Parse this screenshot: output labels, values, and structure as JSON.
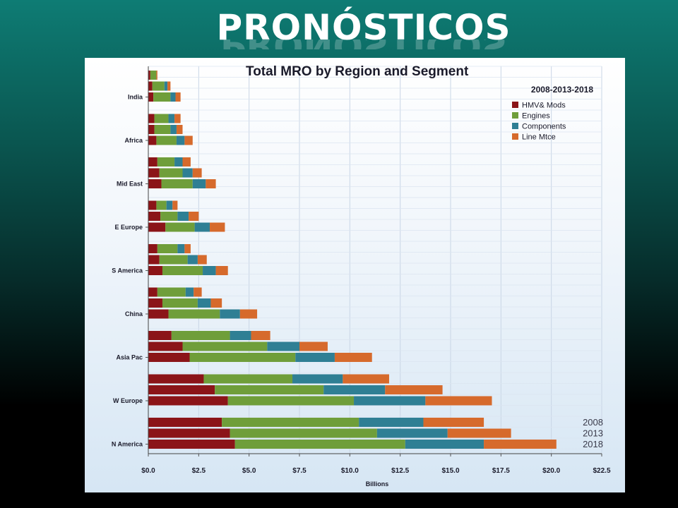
{
  "slide": {
    "title": "PRONÓSTICOS"
  },
  "chart_data": {
    "type": "bar",
    "orientation": "horizontal",
    "stacked": true,
    "title": "Total MRO by Region and Segment",
    "subtitle": "2008-2013-2018",
    "xlabel": "Billions",
    "ylabel": "",
    "xlim": [
      0,
      22.5
    ],
    "x_ticks": [
      "$0.0",
      "$2.5",
      "$5.0",
      "$7.5",
      "$10.0",
      "$12.5",
      "$15.0",
      "$17.5",
      "$20.0",
      "$22.5"
    ],
    "grid": true,
    "legend_position": "top-right",
    "years": [
      "2008",
      "2013",
      "2018"
    ],
    "segments": [
      {
        "name": "HMV& Mods",
        "color": "#8b1418"
      },
      {
        "name": "Engines",
        "color": "#6f9e3a"
      },
      {
        "name": "Components",
        "color": "#2f7f94"
      },
      {
        "name": "Line Mtce",
        "color": "#d66a2c"
      }
    ],
    "categories": [
      "India",
      "Africa",
      "Mid East",
      "E Europe",
      "S America",
      "China",
      "Asia Pac",
      "W Europe",
      "N America"
    ],
    "data": [
      {
        "category": "India",
        "values": [
          [
            0.1,
            0.3,
            0.0,
            0.05
          ],
          [
            0.2,
            0.6,
            0.15,
            0.15
          ],
          [
            0.25,
            0.85,
            0.25,
            0.25
          ]
        ]
      },
      {
        "category": "Africa",
        "values": [
          [
            0.3,
            0.7,
            0.3,
            0.3
          ],
          [
            0.3,
            0.8,
            0.3,
            0.3
          ],
          [
            0.4,
            1.0,
            0.4,
            0.4
          ]
        ]
      },
      {
        "category": "Mid East",
        "values": [
          [
            0.45,
            0.85,
            0.4,
            0.4
          ],
          [
            0.55,
            1.15,
            0.5,
            0.45
          ],
          [
            0.65,
            1.55,
            0.65,
            0.5
          ]
        ]
      },
      {
        "category": "E Europe",
        "values": [
          [
            0.4,
            0.5,
            0.3,
            0.25
          ],
          [
            0.6,
            0.85,
            0.55,
            0.5
          ],
          [
            0.85,
            1.45,
            0.75,
            0.75
          ]
        ]
      },
      {
        "category": "S America",
        "values": [
          [
            0.45,
            1.0,
            0.35,
            0.3
          ],
          [
            0.55,
            1.4,
            0.5,
            0.45
          ],
          [
            0.7,
            2.0,
            0.65,
            0.6
          ]
        ]
      },
      {
        "category": "China",
        "values": [
          [
            0.45,
            1.4,
            0.4,
            0.4
          ],
          [
            0.7,
            1.75,
            0.65,
            0.55
          ],
          [
            1.0,
            2.55,
            1.0,
            0.85
          ]
        ]
      },
      {
        "category": "Asia Pac",
        "values": [
          [
            1.15,
            2.9,
            1.05,
            0.95
          ],
          [
            1.7,
            4.2,
            1.6,
            1.4
          ],
          [
            2.05,
            5.25,
            1.95,
            1.85
          ]
        ]
      },
      {
        "category": "W Europe",
        "values": [
          [
            2.75,
            4.4,
            2.5,
            2.3
          ],
          [
            3.3,
            5.4,
            3.05,
            2.85
          ],
          [
            3.95,
            6.25,
            3.55,
            3.3
          ]
        ]
      },
      {
        "category": "N America",
        "values": [
          [
            3.65,
            6.8,
            3.2,
            3.0
          ],
          [
            4.05,
            7.3,
            3.5,
            3.15
          ],
          [
            4.3,
            8.45,
            3.9,
            3.6
          ]
        ]
      }
    ]
  }
}
